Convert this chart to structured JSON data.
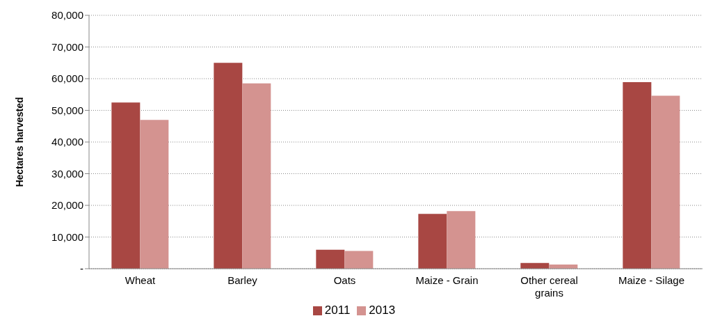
{
  "chart_data": {
    "type": "bar",
    "ylabel": "Hectares harvested",
    "categories": [
      "Wheat",
      "Barley",
      "Oats",
      "Maize - Grain",
      "Other cereal grains",
      "Maize - Silage"
    ],
    "series": [
      {
        "name": "2011",
        "color": "#a84743",
        "values": [
          52500,
          65000,
          6000,
          17300,
          1800,
          58900
        ]
      },
      {
        "name": "2013",
        "color": "#d49390",
        "values": [
          47000,
          58500,
          5600,
          18200,
          1300,
          54600
        ]
      }
    ],
    "ylim": [
      0,
      80000
    ],
    "yticks": [
      {
        "value": 0,
        "label": "-"
      },
      {
        "value": 10000,
        "label": "10,000"
      },
      {
        "value": 20000,
        "label": "20,000"
      },
      {
        "value": 30000,
        "label": "30,000"
      },
      {
        "value": 40000,
        "label": "40,000"
      },
      {
        "value": 50000,
        "label": "50,000"
      },
      {
        "value": 60000,
        "label": "60,000"
      },
      {
        "value": 70000,
        "label": "70,000"
      },
      {
        "value": 80000,
        "label": "80,000"
      }
    ],
    "grid": "y",
    "legend": "bottom"
  }
}
